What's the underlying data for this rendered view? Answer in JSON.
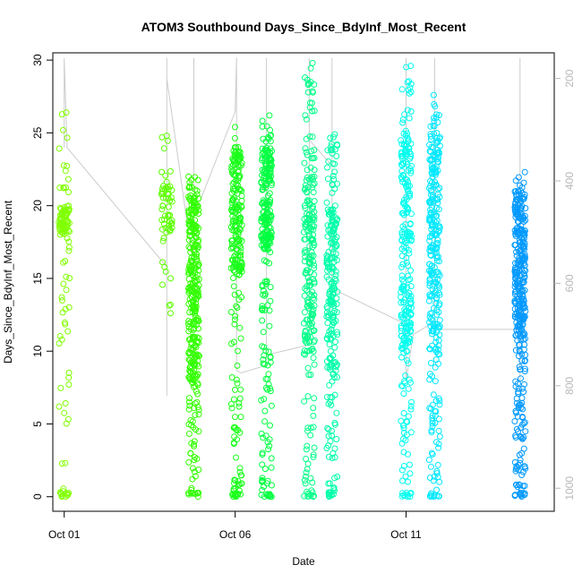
{
  "chart_data": {
    "type": "scatter",
    "title": "ATOM3 Southbound Days_Since_BdyInf_Most_Recent",
    "xlabel": "Date",
    "ylabel": "Days_Since_BdyInf_Most_Recent",
    "x_ticks": [
      "Oct 01",
      "Oct 06",
      "Oct 11"
    ],
    "x_range": [
      "2023-09-30T16:00",
      "2023-10-15T08:00"
    ],
    "y_ticks": [
      0,
      5,
      10,
      15,
      20,
      25,
      30
    ],
    "ylim": [
      -1,
      30.5
    ],
    "right_axis": {
      "ticks": [
        200,
        400,
        600,
        800,
        1000
      ],
      "lim": [
        1045,
        150
      ],
      "color": "#b8b8b8"
    },
    "right_series_color": "#cccccc",
    "grid": false,
    "marker": "open-circle",
    "clusters": [
      {
        "x": "2023-10-01T00:00",
        "color": "#80ff00",
        "ymin": 0,
        "ymax": 26.4,
        "dense": [
          18,
          20
        ],
        "n": 120
      },
      {
        "x": "2023-10-04T00:00",
        "color": "#5cff00",
        "ymin": 12.6,
        "ymax": 24.8,
        "dense": [
          18,
          22
        ],
        "n": 60
      },
      {
        "x": "2023-10-04T19:00",
        "color": "#33ff00",
        "ymin": 0,
        "ymax": 22.0,
        "dense": [
          8,
          21
        ],
        "n": 320
      },
      {
        "x": "2023-10-06T01:00",
        "color": "#1aff1a",
        "ymin": 0,
        "ymax": 25.4,
        "dense": [
          15,
          24
        ],
        "n": 240
      },
      {
        "x": "2023-10-06T22:00",
        "color": "#00ff40",
        "ymin": 0,
        "ymax": 26.2,
        "dense": [
          17,
          24
        ],
        "n": 260
      },
      {
        "x": "2023-10-08T04:00",
        "color": "#00ff88",
        "ymin": 0,
        "ymax": 29.8,
        "dense": [
          10,
          22
        ],
        "n": 230
      },
      {
        "x": "2023-10-08T20:00",
        "color": "#00ffaa",
        "ymin": 0,
        "ymax": 24.9,
        "dense": [
          8,
          20
        ],
        "n": 230
      },
      {
        "x": "2023-10-11T00:00",
        "color": "#00ffee",
        "ymin": 0,
        "ymax": 29.6,
        "dense": [
          10,
          25
        ],
        "n": 260
      },
      {
        "x": "2023-10-11T20:00",
        "color": "#00e8ff",
        "ymin": 0,
        "ymax": 27.6,
        "dense": [
          11,
          25
        ],
        "n": 290
      },
      {
        "x": "2023-10-14T08:00",
        "color": "#0099ff",
        "ymin": 0,
        "ymax": 22.3,
        "dense": [
          11,
          21
        ],
        "n": 360
      }
    ],
    "right_series_path": [
      {
        "x": "2023-10-01T00:00",
        "y": 335
      },
      {
        "x": "2023-10-01T00:00",
        "y": 160
      },
      {
        "x": "2023-10-01T02:00",
        "y": 335
      },
      {
        "x": "2023-10-04T00:00",
        "y": 568
      },
      {
        "x": "2023-10-04T00:00",
        "y": 160
      },
      {
        "x": "2023-10-04T00:00",
        "y": 580
      },
      {
        "x": "2023-10-04T00:00",
        "y": 600
      },
      {
        "x": "2023-10-04T00:00",
        "y": 810
      },
      {
        "x": "2023-10-04T00:00",
        "y": 820
      },
      {
        "x": "2023-10-04T00:00",
        "y": 200
      },
      {
        "x": "2023-10-04T19:00",
        "y": 575
      },
      {
        "x": "2023-10-04T19:00",
        "y": 160
      },
      {
        "x": "2023-10-04T19:00",
        "y": 470
      },
      {
        "x": "2023-10-06T00:00",
        "y": 265
      },
      {
        "x": "2023-10-06T01:00",
        "y": 160
      },
      {
        "x": "2023-10-06T01:00",
        "y": 770
      },
      {
        "x": "2023-10-06T04:00",
        "y": 775
      },
      {
        "x": "2023-10-06T22:00",
        "y": 760
      },
      {
        "x": "2023-10-06T22:00",
        "y": 160
      },
      {
        "x": "2023-10-06T22:00",
        "y": 740
      },
      {
        "x": "2023-10-08T04:00",
        "y": 720
      },
      {
        "x": "2023-10-08T04:00",
        "y": 160
      },
      {
        "x": "2023-10-08T04:00",
        "y": 320
      },
      {
        "x": "2023-10-08T20:00",
        "y": 370
      },
      {
        "x": "2023-10-08T20:00",
        "y": 160
      },
      {
        "x": "2023-10-08T20:00",
        "y": 610
      },
      {
        "x": "2023-10-11T00:00",
        "y": 680
      },
      {
        "x": "2023-10-11T00:00",
        "y": 160
      },
      {
        "x": "2023-10-11T00:00",
        "y": 790
      },
      {
        "x": "2023-10-11T05:00",
        "y": 700
      },
      {
        "x": "2023-10-11T20:00",
        "y": 675
      },
      {
        "x": "2023-10-11T20:00",
        "y": 160
      },
      {
        "x": "2023-10-11T20:00",
        "y": 690
      },
      {
        "x": "2023-10-14T08:00",
        "y": 690
      },
      {
        "x": "2023-10-14T08:00",
        "y": 160
      },
      {
        "x": "2023-10-14T08:00",
        "y": 790
      }
    ]
  }
}
